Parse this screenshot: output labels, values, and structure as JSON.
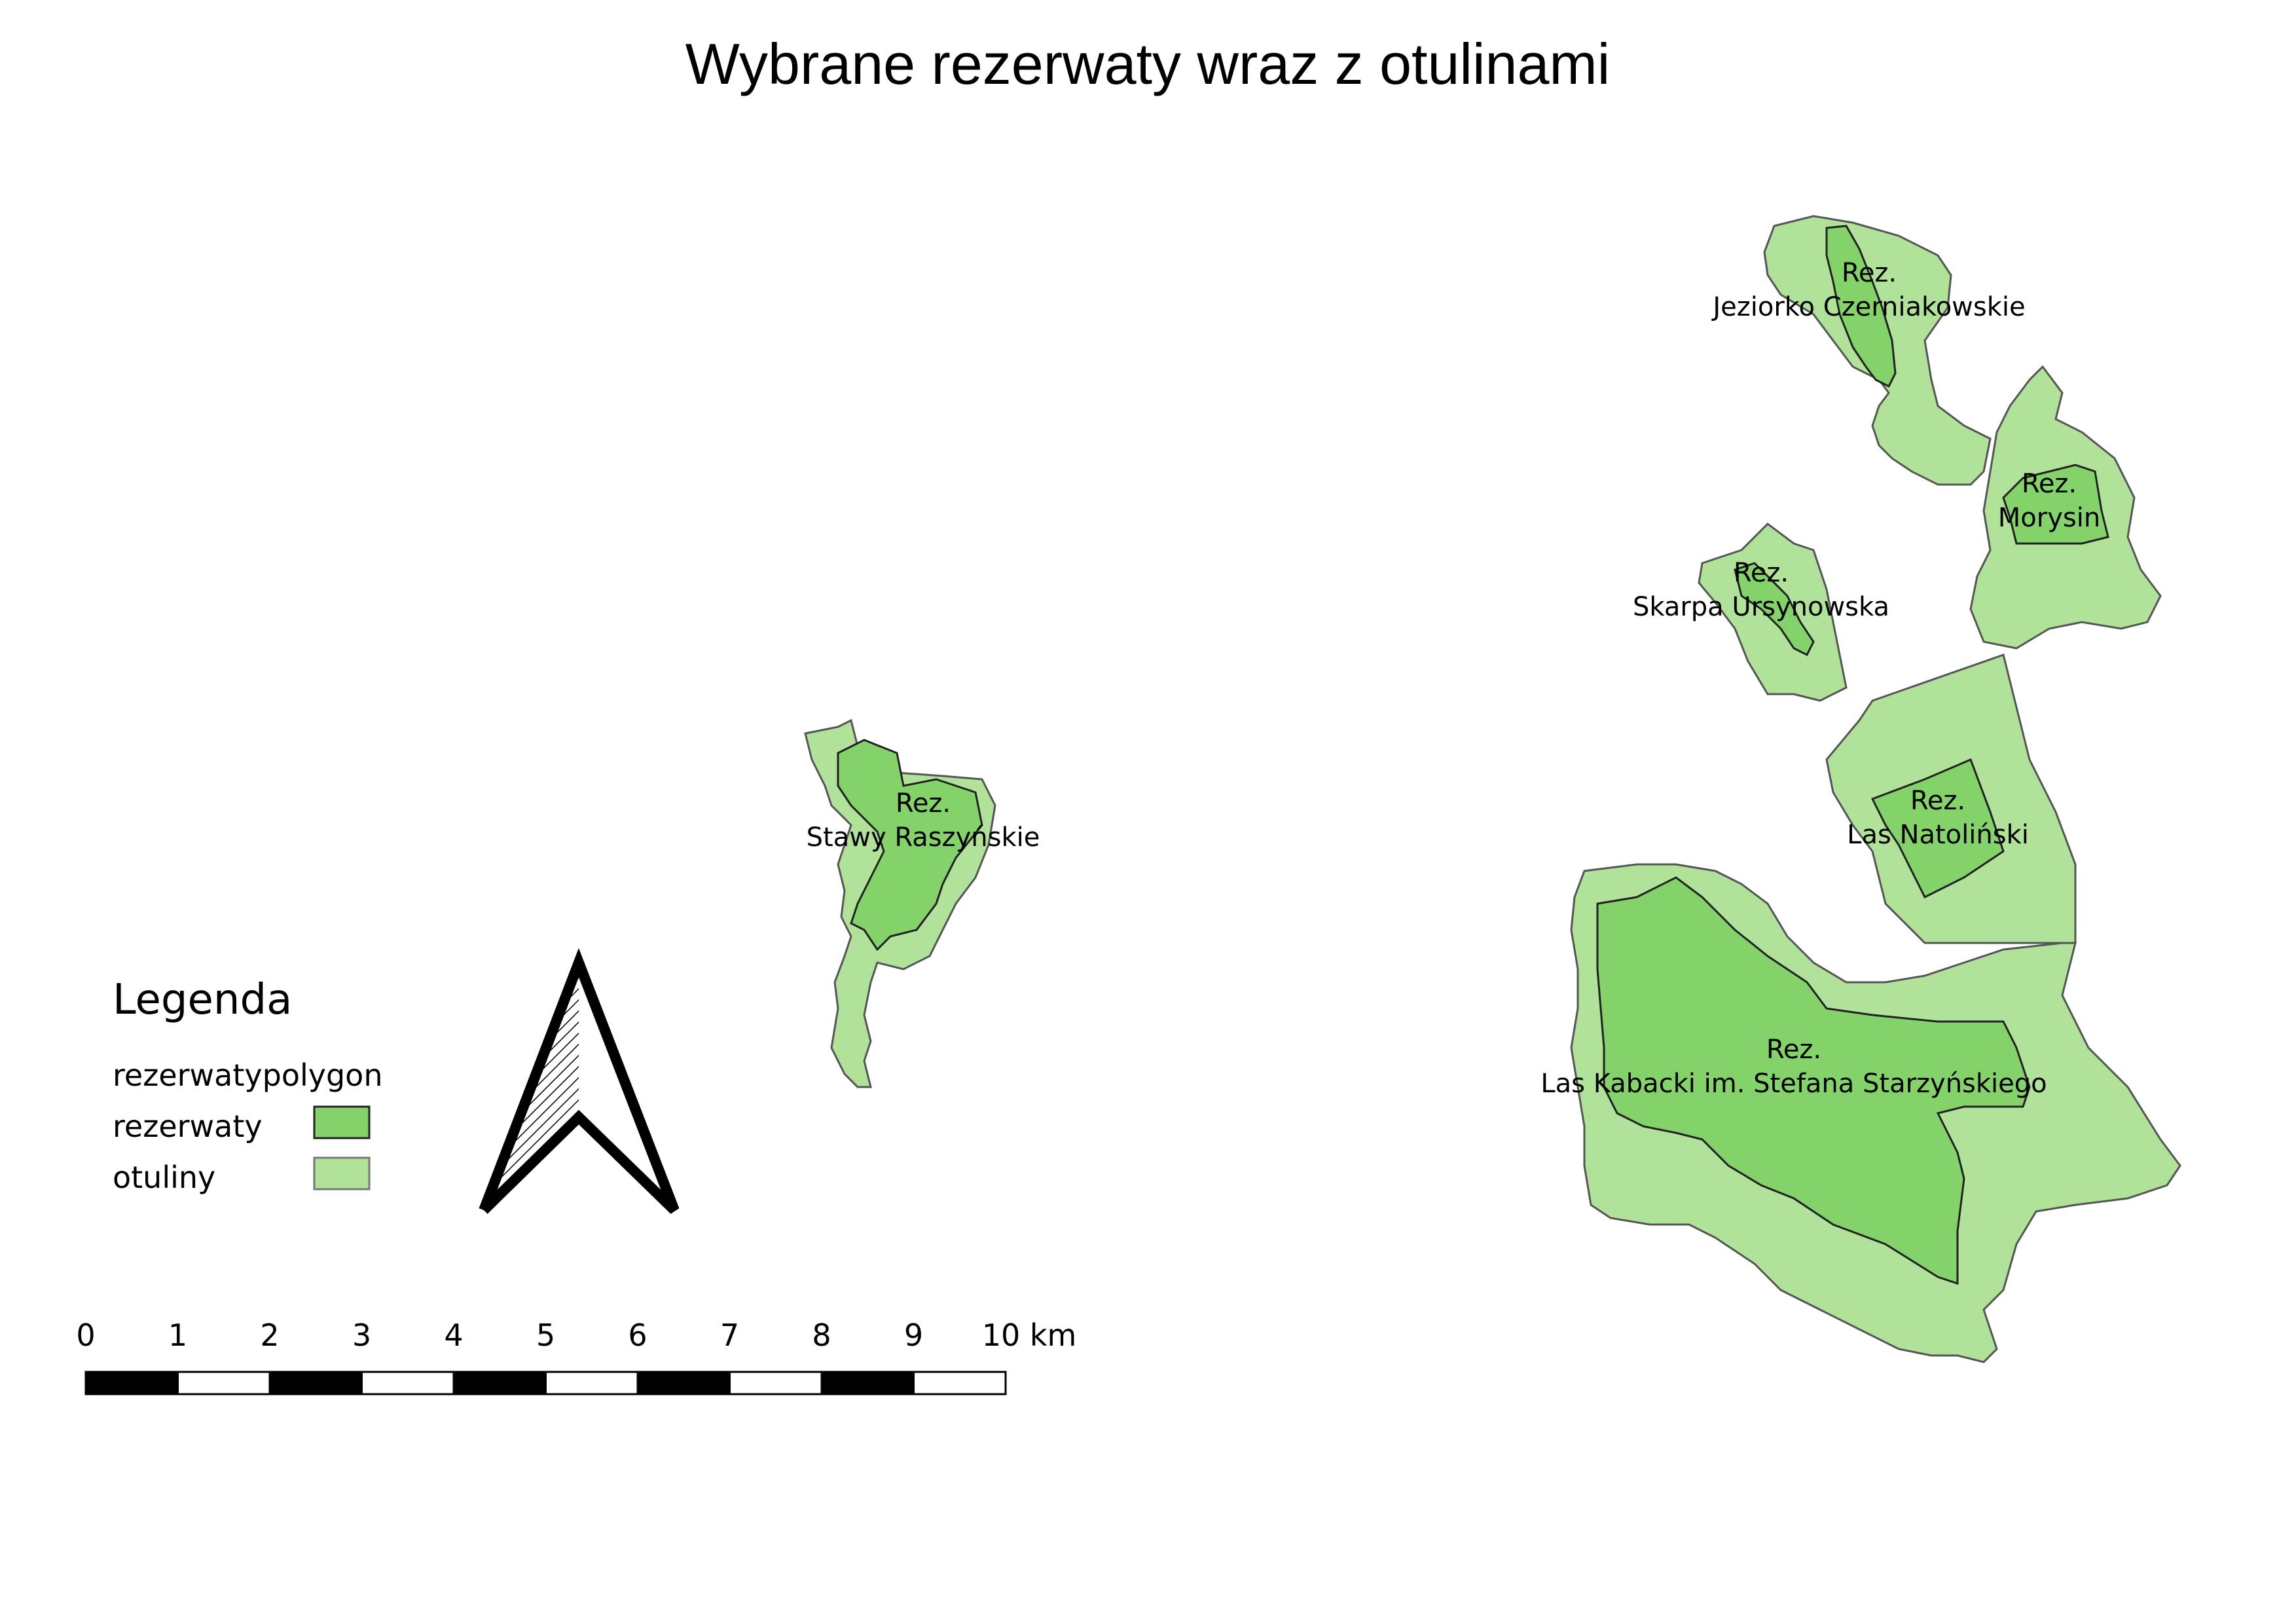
{
  "title": "Wybrane rezerwaty wraz z otulinami",
  "colors": {
    "rezerwaty": "#84d26a",
    "otuliny": "#b1e29a",
    "outline": "#555555"
  },
  "reserves": [
    {
      "line1": "Rez.",
      "line2": "Jeziorko Czerniakowskie"
    },
    {
      "line1": "Rez.",
      "line2": "Morysin"
    },
    {
      "line1": "Rez.",
      "line2": "Skarpa Ursynowska"
    },
    {
      "line1": "Rez.",
      "line2": "Las Natoliński"
    },
    {
      "line1": "Rez.",
      "line2": "Stawy Raszyńskie"
    },
    {
      "line1": "Rez.",
      "line2": "Las Kabacki im. Stefana Starzyńskiego"
    }
  ],
  "legend": {
    "heading": "Legenda",
    "group": "rezerwatypolygon",
    "items": [
      {
        "label": "rezerwaty"
      },
      {
        "label": "otuliny"
      }
    ]
  },
  "scale_bar": {
    "ticks": [
      "0",
      "1",
      "2",
      "3",
      "4",
      "5",
      "6",
      "7",
      "8",
      "9",
      "10 km"
    ]
  },
  "north_arrow": {
    "icon": "north-arrow-icon"
  }
}
